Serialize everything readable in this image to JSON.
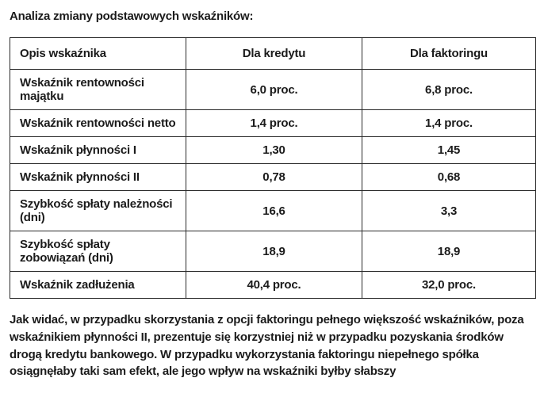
{
  "title": "Analiza zmiany podstawowych wskaźników:",
  "table": {
    "headers": {
      "description": "Opis wskaźnika",
      "credit": "Dla kredytu",
      "factoring": "Dla faktoringu"
    },
    "rows": [
      {
        "label": "Wskaźnik rentowności majątku",
        "credit": "6,0 proc.",
        "factoring": "6,8 proc."
      },
      {
        "label": "Wskaźnik rentowności netto",
        "credit": "1,4 proc.",
        "factoring": "1,4 proc."
      },
      {
        "label": "Wskaźnik płynności I",
        "credit": "1,30",
        "factoring": "1,45"
      },
      {
        "label": "Wskaźnik płynności II",
        "credit": "0,78",
        "factoring": "0,68"
      },
      {
        "label": "Szybkość spłaty należności (dni)",
        "credit": "16,6",
        "factoring": "3,3"
      },
      {
        "label": "Szybkość spłaty zobowiązań (dni)",
        "credit": "18,9",
        "factoring": "18,9"
      },
      {
        "label": "Wskaźnik zadłużenia",
        "credit": "40,4 proc.",
        "factoring": "32,0 proc."
      }
    ]
  },
  "paragraph": {
    "text": "Jak widać, w przypadku skorzystania z opcji faktoringu pełnego większość wskaźników, poza wskaźnikiem płynności II, prezentuje się korzystniej niż w przypadku pozyskania środków drogą kredytu bankowego. W przypadku wykorzystania faktoringu niepełnego spółka osiągnęłaby taki sam efekt, ale jego wpływ na wskaźniki byłby słabszy"
  }
}
